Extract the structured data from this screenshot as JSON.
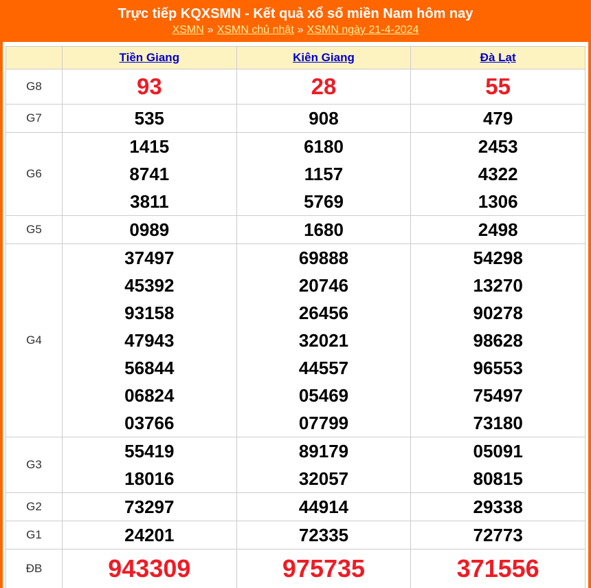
{
  "header": {
    "title": "Trực tiếp KQXSMN - Kết quả xổ số miền Nam hôm nay",
    "separator": "»",
    "breadcrumb": [
      {
        "label": "XSMN"
      },
      {
        "label": "XSMN chủ nhật"
      },
      {
        "label": "XSMN ngày 21-4-2024"
      }
    ]
  },
  "table": {
    "columns": [
      {
        "label": "Tiền Giang"
      },
      {
        "label": "Kiên Giang"
      },
      {
        "label": "Đà Lạt"
      }
    ],
    "rows": [
      {
        "label": "G8",
        "style": "red-large",
        "values": [
          [
            "93"
          ],
          [
            "28"
          ],
          [
            "55"
          ]
        ]
      },
      {
        "label": "G7",
        "style": "normal",
        "values": [
          [
            "535"
          ],
          [
            "908"
          ],
          [
            "479"
          ]
        ]
      },
      {
        "label": "G6",
        "style": "normal",
        "values": [
          [
            "1415",
            "8741",
            "3811"
          ],
          [
            "6180",
            "1157",
            "5769"
          ],
          [
            "2453",
            "4322",
            "1306"
          ]
        ]
      },
      {
        "label": "G5",
        "style": "normal",
        "values": [
          [
            "0989"
          ],
          [
            "1680"
          ],
          [
            "2498"
          ]
        ]
      },
      {
        "label": "G4",
        "style": "normal",
        "values": [
          [
            "37497",
            "45392",
            "93158",
            "47943",
            "56844",
            "06824",
            "03766"
          ],
          [
            "69888",
            "20746",
            "26456",
            "32021",
            "44557",
            "05469",
            "07799"
          ],
          [
            "54298",
            "13270",
            "90278",
            "98628",
            "96553",
            "75497",
            "73180"
          ]
        ]
      },
      {
        "label": "G3",
        "style": "normal",
        "values": [
          [
            "55419",
            "18016"
          ],
          [
            "89179",
            "32057"
          ],
          [
            "05091",
            "80815"
          ]
        ]
      },
      {
        "label": "G2",
        "style": "normal",
        "values": [
          [
            "73297"
          ],
          [
            "44914"
          ],
          [
            "29338"
          ]
        ]
      },
      {
        "label": "G1",
        "style": "normal",
        "values": [
          [
            "24201"
          ],
          [
            "72335"
          ],
          [
            "72773"
          ]
        ]
      },
      {
        "label": "ĐB",
        "style": "red-xlarge",
        "values": [
          [
            "943309"
          ],
          [
            "975735"
          ],
          [
            "371556"
          ]
        ]
      }
    ]
  },
  "colors": {
    "banner_background": "#FF6600",
    "breadcrumb_link": "#FFEE99",
    "table_header_background": "#FDF3C1",
    "column_link": "#0000CC",
    "highlight_number": "#EE1C25",
    "normal_number": "#000000",
    "border": "#CCCCCC"
  }
}
